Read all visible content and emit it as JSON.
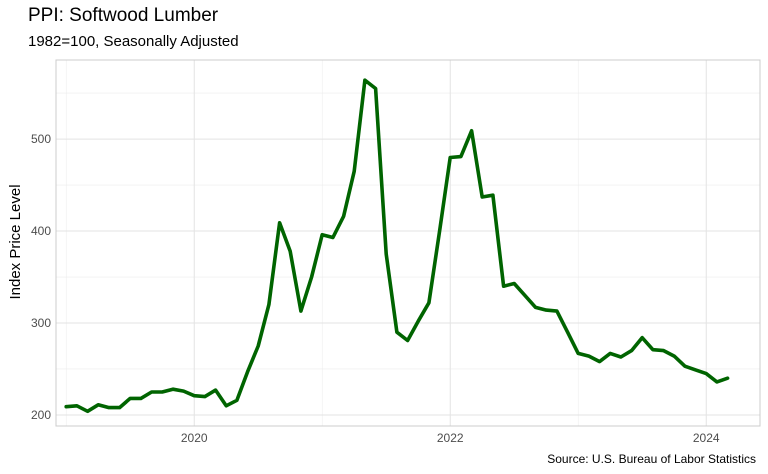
{
  "chart_data": {
    "type": "line",
    "title": "PPI: Softwood Lumber",
    "subtitle": "1982=100, Seasonally Adjusted",
    "caption": "Source: U.S. Bureau of Labor Statistics",
    "ylabel": "Index Price Level",
    "xlabel": "",
    "grid": true,
    "line_color": "#006400",
    "xlim": [
      2018.92,
      2024.42
    ],
    "ylim": [
      188,
      586
    ],
    "x_ticks": [
      2020,
      2022,
      2024
    ],
    "x_tick_labels": [
      "2020",
      "2022",
      "2024"
    ],
    "y_ticks": [
      200,
      300,
      400,
      500
    ],
    "y_tick_labels": [
      "200",
      "300",
      "400",
      "500"
    ],
    "series": [
      {
        "x": [
          2019.0,
          2019.083,
          2019.167,
          2019.25,
          2019.333,
          2019.417,
          2019.5,
          2019.583,
          2019.667,
          2019.75,
          2019.833,
          2019.917,
          2020.0,
          2020.083,
          2020.167,
          2020.25,
          2020.333,
          2020.417,
          2020.5,
          2020.583,
          2020.667,
          2020.75,
          2020.833,
          2020.917,
          2021.0,
          2021.083,
          2021.167,
          2021.25,
          2021.333,
          2021.417,
          2021.5,
          2021.583,
          2021.667,
          2021.75,
          2021.833,
          2021.917,
          2022.0,
          2022.083,
          2022.167,
          2022.25,
          2022.333,
          2022.417,
          2022.5,
          2022.583,
          2022.667,
          2022.75,
          2022.833,
          2022.917,
          2023.0,
          2023.083,
          2023.167,
          2023.25,
          2023.333,
          2023.417,
          2023.5,
          2023.583,
          2023.667,
          2023.75,
          2023.833,
          2023.917,
          2024.0,
          2024.083,
          2024.167
        ],
        "y": [
          209,
          210,
          204,
          211,
          208,
          208,
          218,
          218,
          225,
          225,
          228,
          226,
          221,
          220,
          227,
          210,
          216,
          247,
          275,
          320,
          409,
          378,
          313,
          350,
          396,
          393,
          416,
          465,
          564,
          555,
          375,
          290,
          281,
          302,
          322,
          400,
          480,
          481,
          509,
          437,
          439,
          340,
          343,
          330,
          317,
          314,
          313,
          290,
          267,
          264,
          258,
          267,
          263,
          270,
          284,
          271,
          270,
          264,
          253,
          249,
          245,
          236,
          240
        ]
      }
    ]
  }
}
